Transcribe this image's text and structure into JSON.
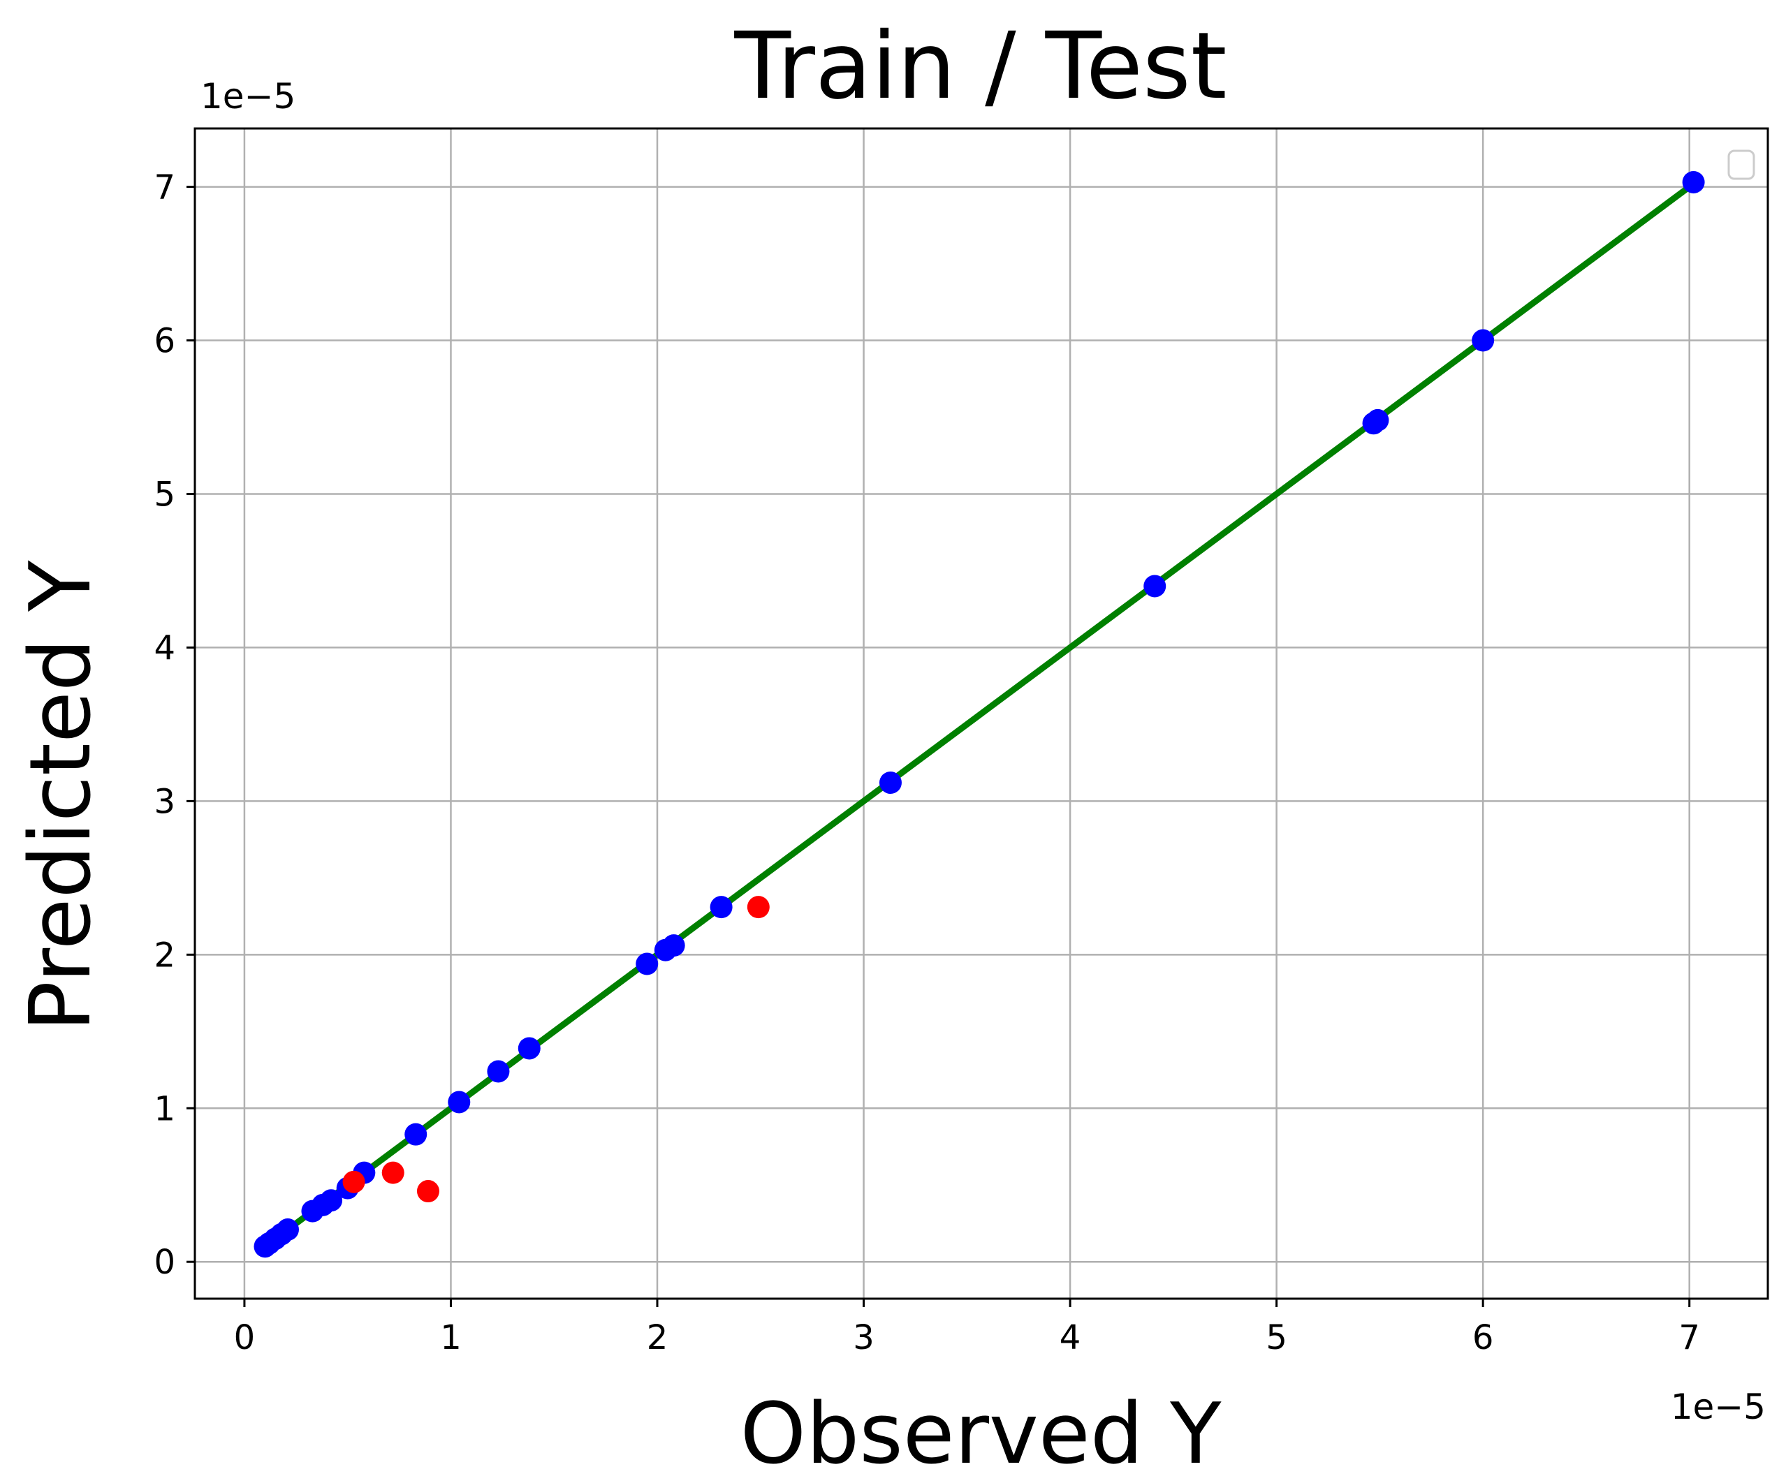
{
  "chart_data": {
    "type": "scatter",
    "title": "Train / Test",
    "xlabel": "Observed Y",
    "ylabel": "Predicted Y",
    "x_offset_text": "1e−5",
    "y_offset_text": "1e−5",
    "xlim": [
      -0.24,
      7.38
    ],
    "ylim": [
      -0.24,
      7.38
    ],
    "x_ticks": [
      0,
      1,
      2,
      3,
      4,
      5,
      6,
      7
    ],
    "y_ticks": [
      0,
      1,
      2,
      3,
      4,
      5,
      6,
      7
    ],
    "x_tick_labels": [
      "0",
      "1",
      "2",
      "3",
      "4",
      "5",
      "6",
      "7"
    ],
    "y_tick_labels": [
      "0",
      "1",
      "2",
      "3",
      "4",
      "5",
      "6",
      "7"
    ],
    "grid": true,
    "legend": {
      "placement": "top-right",
      "entries": []
    },
    "fit_line": {
      "color": "#008000",
      "x": [
        0.1,
        7.02
      ],
      "y": [
        0.1,
        7.02
      ]
    },
    "series": [
      {
        "color": "#0000ff",
        "x": [
          0.1,
          0.12,
          0.15,
          0.18,
          0.21,
          0.33,
          0.38,
          0.42,
          0.5,
          0.58,
          0.83,
          1.04,
          1.23,
          1.38,
          1.95,
          2.04,
          2.08,
          2.31,
          3.13,
          4.41,
          5.47,
          5.49,
          6.0,
          7.02
        ],
        "y": [
          0.1,
          0.12,
          0.15,
          0.18,
          0.21,
          0.33,
          0.37,
          0.4,
          0.48,
          0.58,
          0.83,
          1.04,
          1.24,
          1.39,
          1.94,
          2.03,
          2.06,
          2.31,
          3.12,
          4.4,
          5.46,
          5.48,
          6.0,
          7.03
        ]
      },
      {
        "color": "#ff0000",
        "x": [
          0.53,
          0.72,
          0.89,
          2.49
        ],
        "y": [
          0.52,
          0.58,
          0.46,
          2.31
        ]
      }
    ]
  }
}
